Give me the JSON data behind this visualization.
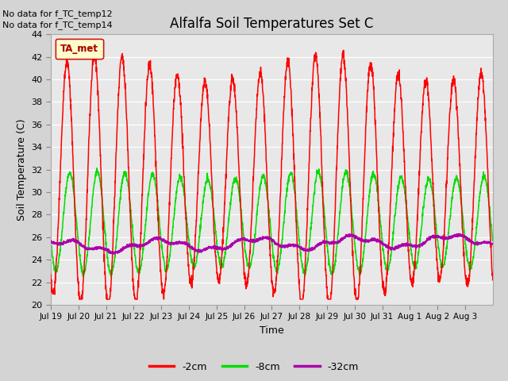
{
  "title": "Alfalfa Soil Temperatures Set C",
  "ylabel": "Soil Temperature (C)",
  "xlabel": "Time",
  "no_data_lines": [
    "No data for f_TC_temp12",
    "No data for f_TC_temp14"
  ],
  "legend_ta_label": "TA_met",
  "ylim": [
    20,
    44
  ],
  "yticks": [
    20,
    22,
    24,
    26,
    28,
    30,
    32,
    34,
    36,
    38,
    40,
    42,
    44
  ],
  "x_tick_labels": [
    "Jul 19",
    "Jul 20",
    "Jul 21",
    "Jul 22",
    "Jul 23",
    "Jul 24",
    "Jul 25",
    "Jul 26",
    "Jul 27",
    "Jul 28",
    "Jul 29",
    "Jul 30",
    "Jul 31",
    "Aug 1",
    "Aug 2",
    "Aug 3"
  ],
  "color_2cm": "#ff0000",
  "color_8cm": "#00dd00",
  "color_32cm": "#aa00aa",
  "fig_bg": "#d4d4d4",
  "plot_bg": "#e8e8e8",
  "num_days": 16,
  "ppd": 144
}
